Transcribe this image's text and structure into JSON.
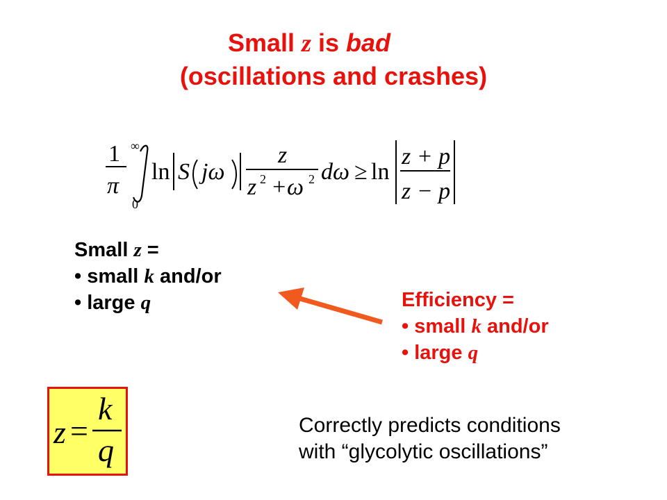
{
  "title": {
    "line1_prefix": "Small ",
    "line1_var": "z",
    "line1_mid": " is ",
    "line1_emph": "bad",
    "line2": "(oscillations and crashes)"
  },
  "equation": {
    "frac_num": "1",
    "frac_den": "π",
    "int_upper": "∞",
    "int_lower": "0",
    "ln": "ln",
    "S_expr": "S",
    "j_omega": "jω",
    "z_num": "z",
    "den_z": "z",
    "den_exp": "2",
    "den_plus": "+ω",
    "den_exp2": "2",
    "domega": "dω",
    "geq": "≥",
    "ln2": "ln",
    "rhs_num": "z + p",
    "rhs_den": "z − p"
  },
  "left_block": {
    "heading_prefix": "Small ",
    "heading_var": "z",
    "heading_suffix": " =",
    "bullet1_prefix": "• small ",
    "bullet1_var": "k",
    "bullet1_suffix": " and/or",
    "bullet2_prefix": "• large ",
    "bullet2_var": "q"
  },
  "right_block": {
    "heading": "Efficiency =",
    "bullet1_prefix": "• small ",
    "bullet1_var": "k",
    "bullet1_suffix": " and/or",
    "bullet2_prefix": "• large ",
    "bullet2_var": "q"
  },
  "formula_box": {
    "lhs": "z",
    "eq": "=",
    "num": "k",
    "den": "q"
  },
  "note": {
    "line1": "Correctly predicts conditions",
    "line2": "with “glycolytic oscillations”"
  },
  "colors": {
    "accent_red": "#e8120c",
    "arrow": "#f05a1e",
    "box_fill": "#ffff66"
  }
}
